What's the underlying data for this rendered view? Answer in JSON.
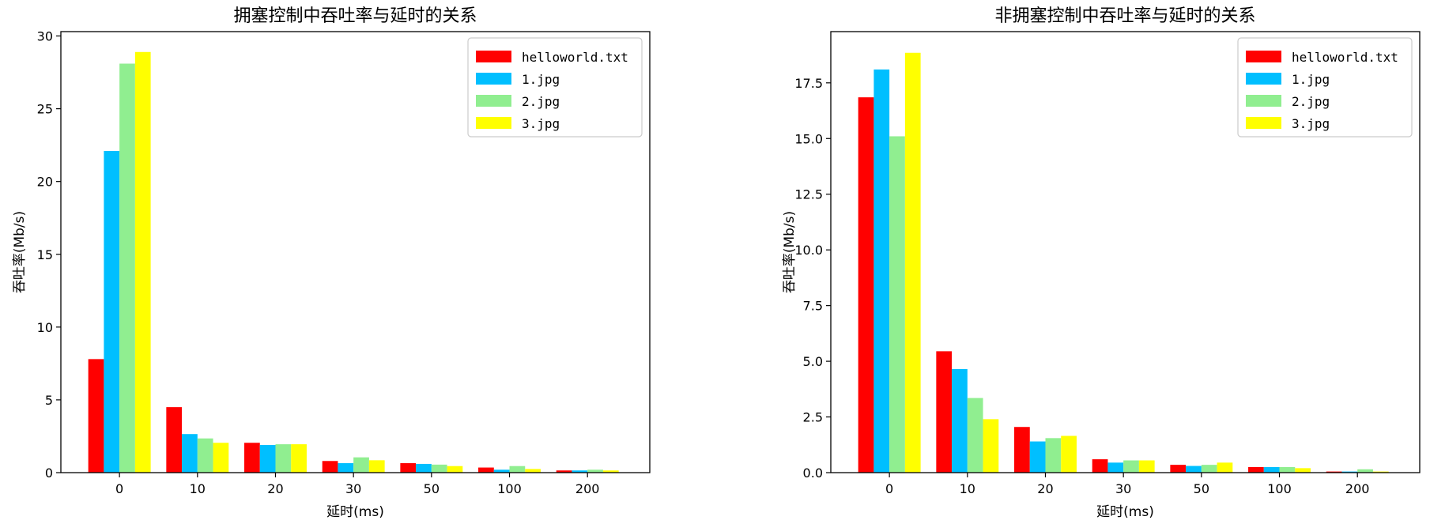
{
  "chart_data": [
    {
      "type": "bar",
      "title": "拥塞控制中吞吐率与延时的关系",
      "xlabel": "延时(ms)",
      "ylabel": "吞吐率(Mb/s)",
      "categories": [
        "0",
        "10",
        "20",
        "30",
        "50",
        "100",
        "200"
      ],
      "ylim": [
        0,
        30.3
      ],
      "yticks": [
        "0",
        "5",
        "10",
        "15",
        "20",
        "25",
        "30"
      ],
      "ytick_values": [
        0,
        5,
        10,
        15,
        20,
        25,
        30
      ],
      "legend_position": "top-right",
      "grid": false,
      "series": [
        {
          "name": "helloworld.txt",
          "color": "#ff0000",
          "values": [
            7.8,
            4.5,
            2.05,
            0.8,
            0.65,
            0.35,
            0.15
          ]
        },
        {
          "name": "1.jpg",
          "color": "#00bfff",
          "values": [
            22.1,
            2.65,
            1.9,
            0.65,
            0.6,
            0.2,
            0.15
          ]
        },
        {
          "name": "2.jpg",
          "color": "#90ee90",
          "values": [
            28.1,
            2.35,
            1.95,
            1.05,
            0.55,
            0.45,
            0.2
          ]
        },
        {
          "name": "3.jpg",
          "color": "#ffff00",
          "values": [
            28.9,
            2.05,
            1.95,
            0.85,
            0.45,
            0.25,
            0.15
          ]
        }
      ]
    },
    {
      "type": "bar",
      "title": "非拥塞控制中吞吐率与延时的关系",
      "xlabel": "延时(ms)",
      "ylabel": "吞吐率(Mb/s)",
      "categories": [
        "0",
        "10",
        "20",
        "30",
        "50",
        "100",
        "200"
      ],
      "ylim": [
        0,
        19.8
      ],
      "yticks": [
        "0.0",
        "2.5",
        "5.0",
        "7.5",
        "10.0",
        "12.5",
        "15.0",
        "17.5"
      ],
      "ytick_values": [
        0,
        2.5,
        5,
        7.5,
        10,
        12.5,
        15,
        17.5
      ],
      "legend_position": "top-right",
      "grid": false,
      "series": [
        {
          "name": "helloworld.txt",
          "color": "#ff0000",
          "values": [
            16.85,
            5.45,
            2.05,
            0.6,
            0.35,
            0.25,
            0.05
          ]
        },
        {
          "name": "1.jpg",
          "color": "#00bfff",
          "values": [
            18.1,
            4.65,
            1.4,
            0.45,
            0.3,
            0.25,
            0.05
          ]
        },
        {
          "name": "2.jpg",
          "color": "#90ee90",
          "values": [
            15.1,
            3.35,
            1.55,
            0.55,
            0.35,
            0.25,
            0.15
          ]
        },
        {
          "name": "3.jpg",
          "color": "#ffff00",
          "values": [
            18.85,
            2.4,
            1.65,
            0.55,
            0.45,
            0.2,
            0.05
          ]
        }
      ]
    }
  ]
}
